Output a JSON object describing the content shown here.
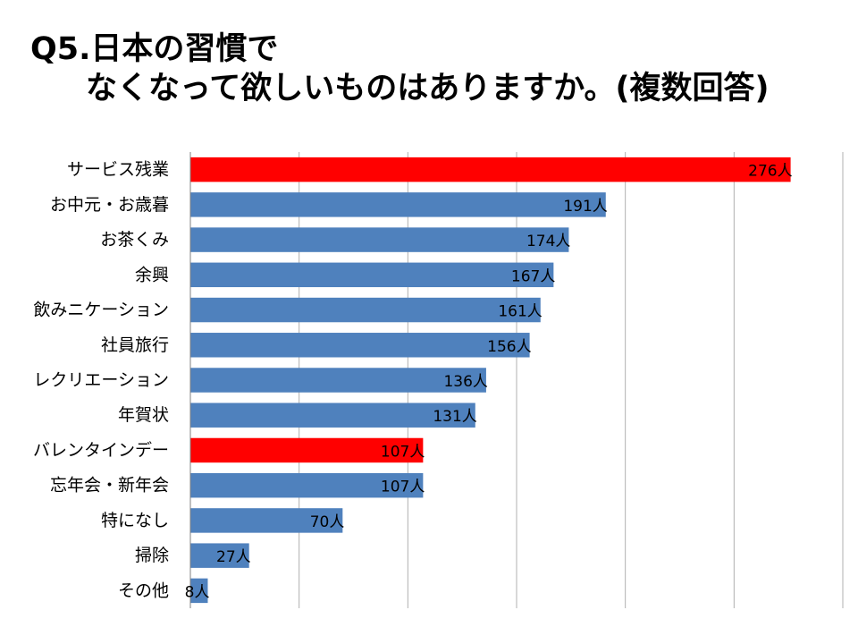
{
  "title": {
    "line1": "Q5.日本の習慣で",
    "line2": "なくなって欲しいものはありますか。(複数回答)"
  },
  "chart_data": {
    "type": "bar",
    "orientation": "horizontal",
    "categories": [
      "サービス残業",
      "お中元・お歳暮",
      "お茶くみ",
      "余興",
      "飲みニケーション",
      "社員旅行",
      "レクリエーション",
      "年賀状",
      "バレンタインデー",
      "忘年会・新年会",
      "特になし",
      "掃除",
      "その他"
    ],
    "values": [
      276,
      191,
      174,
      167,
      161,
      156,
      136,
      131,
      107,
      107,
      70,
      27,
      8
    ],
    "value_labels": [
      "276人",
      "191人",
      "174人",
      "167人",
      "161人",
      "156人",
      "136人",
      "131人",
      "107人",
      "107人",
      "70人",
      "27人",
      "8人"
    ],
    "highlighted": [
      true,
      false,
      false,
      false,
      false,
      false,
      false,
      false,
      true,
      false,
      false,
      false,
      false
    ],
    "xlim": [
      0,
      300
    ],
    "x_gridline_step": 50,
    "grid": true,
    "legend": "none",
    "colors": {
      "default_bar": "#4f81bd",
      "highlight_bar": "#ff0000",
      "gridline": "#b0b0b0",
      "axis": "#808080"
    }
  }
}
